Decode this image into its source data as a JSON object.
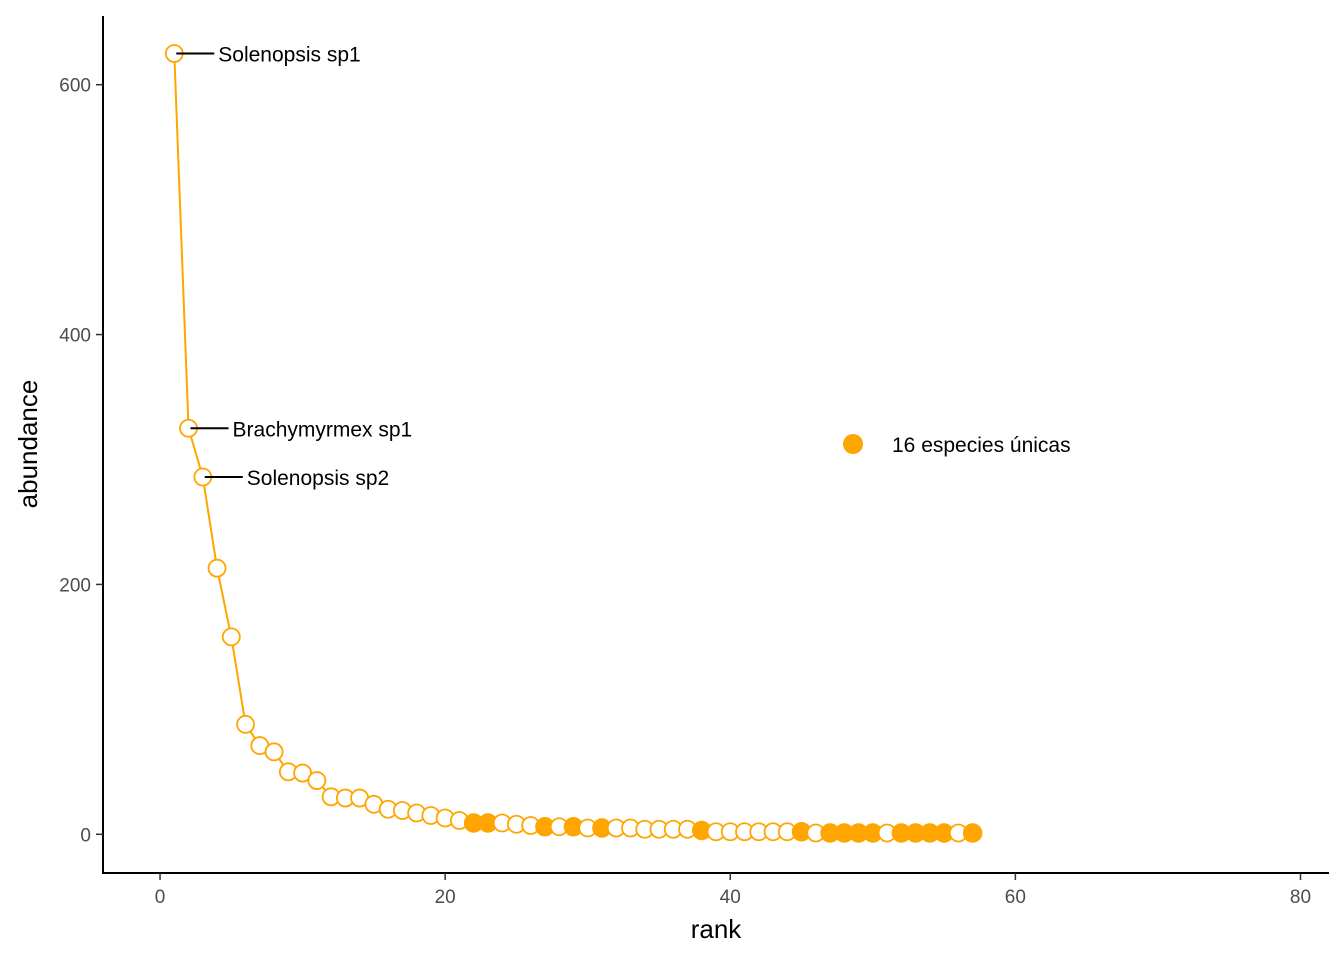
{
  "chart_data": {
    "type": "scatter",
    "xlabel": "rank",
    "ylabel": "abundance",
    "xlim": [
      -4,
      82
    ],
    "ylim": [
      -31,
      655
    ],
    "x_ticks": [
      0,
      20,
      40,
      60,
      80
    ],
    "y_ticks": [
      0,
      200,
      400,
      600
    ],
    "grid": false,
    "color": "#FFA500",
    "line_connected": true,
    "points": [
      {
        "x": 1,
        "y": 625,
        "unique": false
      },
      {
        "x": 2,
        "y": 325,
        "unique": false
      },
      {
        "x": 3,
        "y": 286,
        "unique": false
      },
      {
        "x": 4,
        "y": 213,
        "unique": false
      },
      {
        "x": 5,
        "y": 158,
        "unique": false
      },
      {
        "x": 6,
        "y": 88,
        "unique": false
      },
      {
        "x": 7,
        "y": 71,
        "unique": false
      },
      {
        "x": 8,
        "y": 66,
        "unique": false
      },
      {
        "x": 9,
        "y": 50,
        "unique": false
      },
      {
        "x": 10,
        "y": 49,
        "unique": false
      },
      {
        "x": 11,
        "y": 43,
        "unique": false
      },
      {
        "x": 12,
        "y": 30,
        "unique": false
      },
      {
        "x": 13,
        "y": 29,
        "unique": false
      },
      {
        "x": 14,
        "y": 29,
        "unique": false
      },
      {
        "x": 15,
        "y": 24,
        "unique": false
      },
      {
        "x": 16,
        "y": 20,
        "unique": false
      },
      {
        "x": 17,
        "y": 19,
        "unique": false
      },
      {
        "x": 18,
        "y": 17,
        "unique": false
      },
      {
        "x": 19,
        "y": 15,
        "unique": false
      },
      {
        "x": 20,
        "y": 13,
        "unique": false
      },
      {
        "x": 21,
        "y": 11,
        "unique": false
      },
      {
        "x": 22,
        "y": 9,
        "unique": true
      },
      {
        "x": 23,
        "y": 9,
        "unique": true
      },
      {
        "x": 24,
        "y": 9,
        "unique": false
      },
      {
        "x": 25,
        "y": 8,
        "unique": false
      },
      {
        "x": 26,
        "y": 7,
        "unique": false
      },
      {
        "x": 27,
        "y": 6,
        "unique": true
      },
      {
        "x": 28,
        "y": 6,
        "unique": false
      },
      {
        "x": 29,
        "y": 6,
        "unique": true
      },
      {
        "x": 30,
        "y": 5,
        "unique": false
      },
      {
        "x": 31,
        "y": 5,
        "unique": true
      },
      {
        "x": 32,
        "y": 5,
        "unique": false
      },
      {
        "x": 33,
        "y": 5,
        "unique": false
      },
      {
        "x": 34,
        "y": 4,
        "unique": false
      },
      {
        "x": 35,
        "y": 4,
        "unique": false
      },
      {
        "x": 36,
        "y": 4,
        "unique": false
      },
      {
        "x": 37,
        "y": 4,
        "unique": false
      },
      {
        "x": 38,
        "y": 3,
        "unique": true
      },
      {
        "x": 39,
        "y": 2,
        "unique": false
      },
      {
        "x": 40,
        "y": 2,
        "unique": false
      },
      {
        "x": 41,
        "y": 2,
        "unique": false
      },
      {
        "x": 42,
        "y": 2,
        "unique": false
      },
      {
        "x": 43,
        "y": 2,
        "unique": false
      },
      {
        "x": 44,
        "y": 2,
        "unique": false
      },
      {
        "x": 45,
        "y": 2,
        "unique": true
      },
      {
        "x": 46,
        "y": 1,
        "unique": false
      },
      {
        "x": 47,
        "y": 1,
        "unique": true
      },
      {
        "x": 48,
        "y": 1,
        "unique": true
      },
      {
        "x": 49,
        "y": 1,
        "unique": true
      },
      {
        "x": 50,
        "y": 1,
        "unique": true
      },
      {
        "x": 51,
        "y": 1,
        "unique": false
      },
      {
        "x": 52,
        "y": 1,
        "unique": true
      },
      {
        "x": 53,
        "y": 1,
        "unique": true
      },
      {
        "x": 54,
        "y": 1,
        "unique": true
      },
      {
        "x": 55,
        "y": 1,
        "unique": true
      },
      {
        "x": 56,
        "y": 1,
        "unique": false
      },
      {
        "x": 57,
        "y": 1,
        "unique": true
      }
    ],
    "annotations": [
      {
        "text": "Solenopsis sp1",
        "x": 1,
        "y": 625
      },
      {
        "text": "Brachymyrmex sp1",
        "x": 2,
        "y": 325
      },
      {
        "text": "Solenopsis sp2",
        "x": 3,
        "y": 286
      }
    ],
    "legend": {
      "label": "16 especies únicas",
      "position": "center-right",
      "marker": "filled-circle"
    }
  }
}
